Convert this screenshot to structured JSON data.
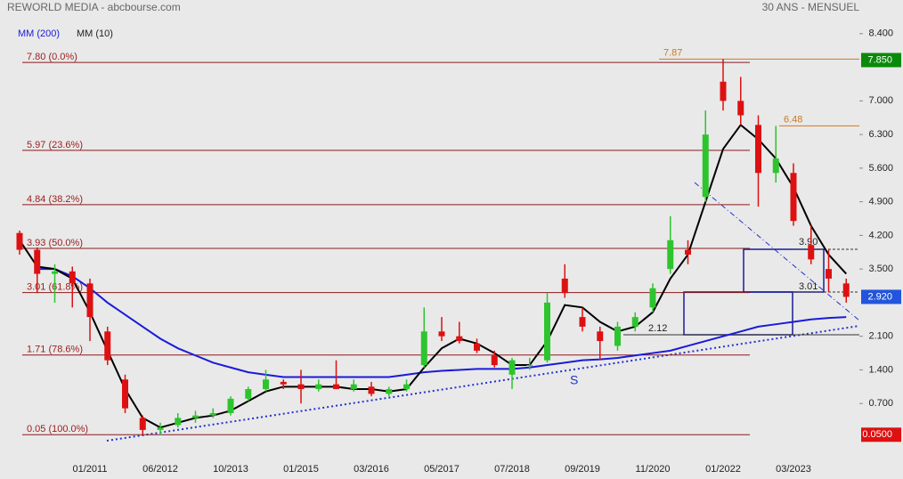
{
  "chart_data": {
    "type": "candlestick",
    "title": "REWORLD MEDIA - abcbourse.com",
    "subtitle": "30 ANS - MENSUEL",
    "categories": [
      null,
      null,
      null,
      null,
      "01/2011",
      null,
      null,
      null,
      "06/2012",
      null,
      null,
      null,
      "10/2013",
      null,
      null,
      null,
      "01/2015",
      null,
      null,
      null,
      "03/2016",
      null,
      null,
      null,
      "05/2017",
      null,
      null,
      null,
      "07/2018",
      null,
      null,
      null,
      "09/2019",
      null,
      null,
      null,
      "11/2020",
      null,
      null,
      null,
      "01/2022",
      null,
      null,
      null,
      "03/2023",
      null,
      null,
      null
    ],
    "open": [
      4.25,
      3.9,
      3.4,
      3.45,
      3.2,
      2.2,
      1.2,
      0.4,
      0.15,
      0.25,
      0.4,
      0.45,
      0.5,
      0.8,
      1.0,
      1.15,
      1.1,
      1.0,
      1.1,
      1.0,
      1.05,
      0.9,
      1.0,
      1.5,
      2.2,
      2.1,
      1.95,
      1.7,
      1.3,
      1.5,
      1.6,
      3.3,
      2.5,
      2.2,
      1.9,
      2.3,
      2.7,
      3.5,
      3.9,
      5.0,
      7.4,
      7.0,
      6.5,
      5.5,
      5.5,
      4.0,
      3.5,
      3.2
    ],
    "high": [
      4.3,
      3.95,
      3.6,
      3.55,
      3.3,
      2.3,
      1.3,
      0.45,
      0.3,
      0.5,
      0.55,
      0.6,
      0.85,
      1.05,
      1.4,
      1.2,
      1.4,
      1.2,
      1.6,
      1.2,
      1.15,
      1.05,
      1.2,
      2.7,
      2.5,
      2.4,
      2.05,
      1.8,
      1.65,
      1.65,
      3.0,
      3.6,
      2.7,
      2.3,
      2.4,
      2.6,
      3.2,
      4.6,
      4.1,
      6.8,
      7.87,
      7.5,
      6.7,
      6.48,
      5.7,
      4.4,
      3.9,
      3.3
    ],
    "low": [
      3.8,
      3.0,
      2.8,
      2.7,
      2.0,
      1.5,
      0.5,
      0.05,
      0.05,
      0.2,
      0.3,
      0.4,
      0.45,
      0.75,
      0.95,
      1.0,
      0.7,
      0.95,
      1.0,
      0.95,
      0.85,
      0.85,
      0.95,
      1.45,
      2.0,
      1.95,
      1.75,
      1.45,
      1.0,
      1.4,
      1.55,
      2.9,
      2.2,
      1.6,
      1.8,
      2.2,
      2.6,
      3.4,
      3.6,
      4.9,
      6.8,
      6.5,
      4.8,
      5.3,
      4.4,
      3.6,
      3.01,
      2.8
    ],
    "close": [
      3.9,
      3.4,
      3.45,
      3.2,
      2.5,
      1.6,
      0.6,
      0.15,
      0.2,
      0.4,
      0.45,
      0.5,
      0.8,
      1.0,
      1.2,
      1.1,
      1.0,
      1.1,
      1.0,
      1.1,
      0.9,
      1.0,
      1.1,
      2.2,
      2.1,
      2.0,
      1.8,
      1.5,
      1.6,
      1.5,
      2.8,
      3.0,
      2.3,
      2.0,
      2.3,
      2.5,
      3.1,
      4.1,
      3.8,
      6.3,
      7.0,
      6.7,
      5.5,
      5.8,
      4.5,
      3.7,
      3.3,
      2.92
    ],
    "up_color": "#2ec42e",
    "down_color": "#dd1111",
    "series": [
      {
        "name": "MM (200)",
        "color": "#1a1adb",
        "values": [
          null,
          3.5,
          3.5,
          3.35,
          3.1,
          2.8,
          2.55,
          2.3,
          2.05,
          1.85,
          1.7,
          1.55,
          1.45,
          1.35,
          1.3,
          1.25,
          1.25,
          1.25,
          1.25,
          1.25,
          1.25,
          1.25,
          1.3,
          1.35,
          1.38,
          1.4,
          1.42,
          1.42,
          1.42,
          1.45,
          1.5,
          1.55,
          1.6,
          1.62,
          1.65,
          1.7,
          1.75,
          1.8,
          1.9,
          2.0,
          2.1,
          2.2,
          2.3,
          2.35,
          2.4,
          2.45,
          2.48,
          2.5
        ]
      },
      {
        "name": "MM (10)",
        "color": "#000000",
        "values": [
          4.1,
          3.55,
          3.5,
          3.3,
          2.6,
          1.8,
          1.0,
          0.4,
          0.2,
          0.3,
          0.4,
          0.45,
          0.55,
          0.75,
          0.95,
          1.05,
          1.05,
          1.05,
          1.05,
          1.0,
          1.0,
          0.95,
          1.0,
          1.45,
          1.85,
          2.05,
          1.95,
          1.75,
          1.5,
          1.5,
          2.0,
          2.75,
          2.7,
          2.4,
          2.2,
          2.3,
          2.6,
          3.3,
          3.8,
          4.9,
          6.0,
          6.5,
          6.2,
          5.8,
          5.2,
          4.4,
          3.8,
          3.4
        ]
      }
    ],
    "ylim": [
      -0.26,
      8.73
    ],
    "yticks": [
      {
        "value": 8.4,
        "label": "8.400"
      },
      {
        "value": 7.0,
        "label": "7.000"
      },
      {
        "value": 6.3,
        "label": "6.300"
      },
      {
        "value": 5.6,
        "label": "5.600"
      },
      {
        "value": 4.9,
        "label": "4.900"
      },
      {
        "value": 4.2,
        "label": "4.200"
      },
      {
        "value": 3.5,
        "label": "3.500"
      },
      {
        "value": 2.1,
        "label": "2.100"
      },
      {
        "value": 1.4,
        "label": "1.400"
      },
      {
        "value": 0.7,
        "label": "0.700"
      }
    ],
    "levels": [
      {
        "value": 7.8,
        "label": "7.80  (0.0%)"
      },
      {
        "value": 5.97,
        "label": "5.97  (23.6%)"
      },
      {
        "value": 4.84,
        "label": "4.84  (38.2%)"
      },
      {
        "value": 3.93,
        "label": "3.93  (50.0%)"
      },
      {
        "value": 3.01,
        "label": "3.01  (61.8%)"
      },
      {
        "value": 1.71,
        "label": "1.71  (78.6%)"
      },
      {
        "value": 0.05,
        "label": "0.05  (100.0%)"
      }
    ],
    "annotations": [
      {
        "value": 7.87,
        "label": "7.87"
      },
      {
        "value": 6.48,
        "label": "6.48"
      }
    ],
    "box_labels": [
      {
        "value": 3.9,
        "label": "3.90"
      },
      {
        "value": 3.01,
        "label": "3.01"
      },
      {
        "value": 2.12,
        "label": "2.12"
      }
    ],
    "wave_label": "S",
    "price_tags": [
      {
        "value": 7.85,
        "label": "7.850",
        "color": "#0a8a0a"
      },
      {
        "value": 2.92,
        "label": "2.920",
        "color": "#2255dd"
      },
      {
        "value": 0.05,
        "label": "0.0500",
        "color": "#dd1111"
      }
    ]
  }
}
